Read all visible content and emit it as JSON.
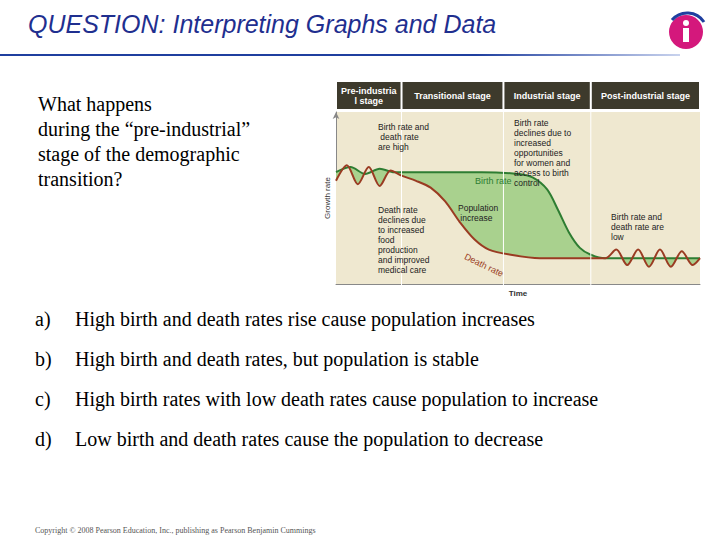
{
  "header": {
    "title": "QUESTION: Interpreting Graphs and Data"
  },
  "question": [
    "What happens",
    "during the “pre-industrial”",
    "stage of the demographic",
    "transition?"
  ],
  "options": [
    {
      "label": "a)",
      "text": "High birth and death rates rise cause population increases"
    },
    {
      "label": "b)",
      "text": "High birth and death rates, but population is stable"
    },
    {
      "label": "c)",
      "text": "High birth rates with low death rates cause population to increase"
    },
    {
      "label": "d)",
      "text": "Low birth and death rates cause the population to decrease"
    }
  ],
  "footer": "Copyright © 2008 Pearson Education, Inc., publishing as Pearson Benjamin Cummings",
  "chart_data": {
    "type": "line",
    "x_label": "Time",
    "y_label": "Growth rate",
    "xlim": [
      0,
      100
    ],
    "ylim": [
      0,
      10
    ],
    "tick_labels": false,
    "stages": [
      {
        "label": "Pre-industrial stage",
        "start": 0,
        "end": 18
      },
      {
        "label": "Transitional stage",
        "start": 18,
        "end": 46
      },
      {
        "label": "Industrial stage",
        "start": 46,
        "end": 70
      },
      {
        "label": "Post-industrial stage",
        "start": 70,
        "end": 100
      }
    ],
    "series": [
      {
        "name": "Birth rate",
        "color": "#2e7d32",
        "x": [
          0,
          4,
          8,
          12,
          16,
          20,
          30,
          40,
          50,
          54,
          58,
          61,
          64,
          67,
          70,
          74,
          80,
          86,
          92,
          100
        ],
        "values": [
          6.5,
          6.8,
          6.4,
          6.7,
          6.5,
          6.5,
          6.5,
          6.5,
          6.4,
          6.2,
          5.5,
          4.3,
          3.0,
          2.1,
          1.7,
          1.5,
          1.5,
          1.5,
          1.5,
          1.5
        ]
      },
      {
        "name": "Death rate",
        "color": "#9a3b22",
        "x": [
          0,
          3,
          6,
          9,
          12,
          15,
          18,
          22,
          26,
          30,
          34,
          38,
          42,
          48,
          56,
          66,
          74,
          77,
          80,
          83,
          86,
          89,
          92,
          95,
          98,
          100
        ],
        "values": [
          6.0,
          6.9,
          5.8,
          6.8,
          5.7,
          6.6,
          6.3,
          6.0,
          5.6,
          4.8,
          3.6,
          2.6,
          2.0,
          1.7,
          1.5,
          1.5,
          1.5,
          2.0,
          1.1,
          2.0,
          1.0,
          2.0,
          1.0,
          1.9,
          1.1,
          1.5
        ]
      }
    ],
    "annotations": [
      "Birth rate and death rate are high",
      "Birth rate declines due to increased opportunities for women and access to birth control",
      "Death rate declines due to increased food production and improved medical care",
      "Population increase",
      "Birth rate and death rate are low"
    ]
  }
}
